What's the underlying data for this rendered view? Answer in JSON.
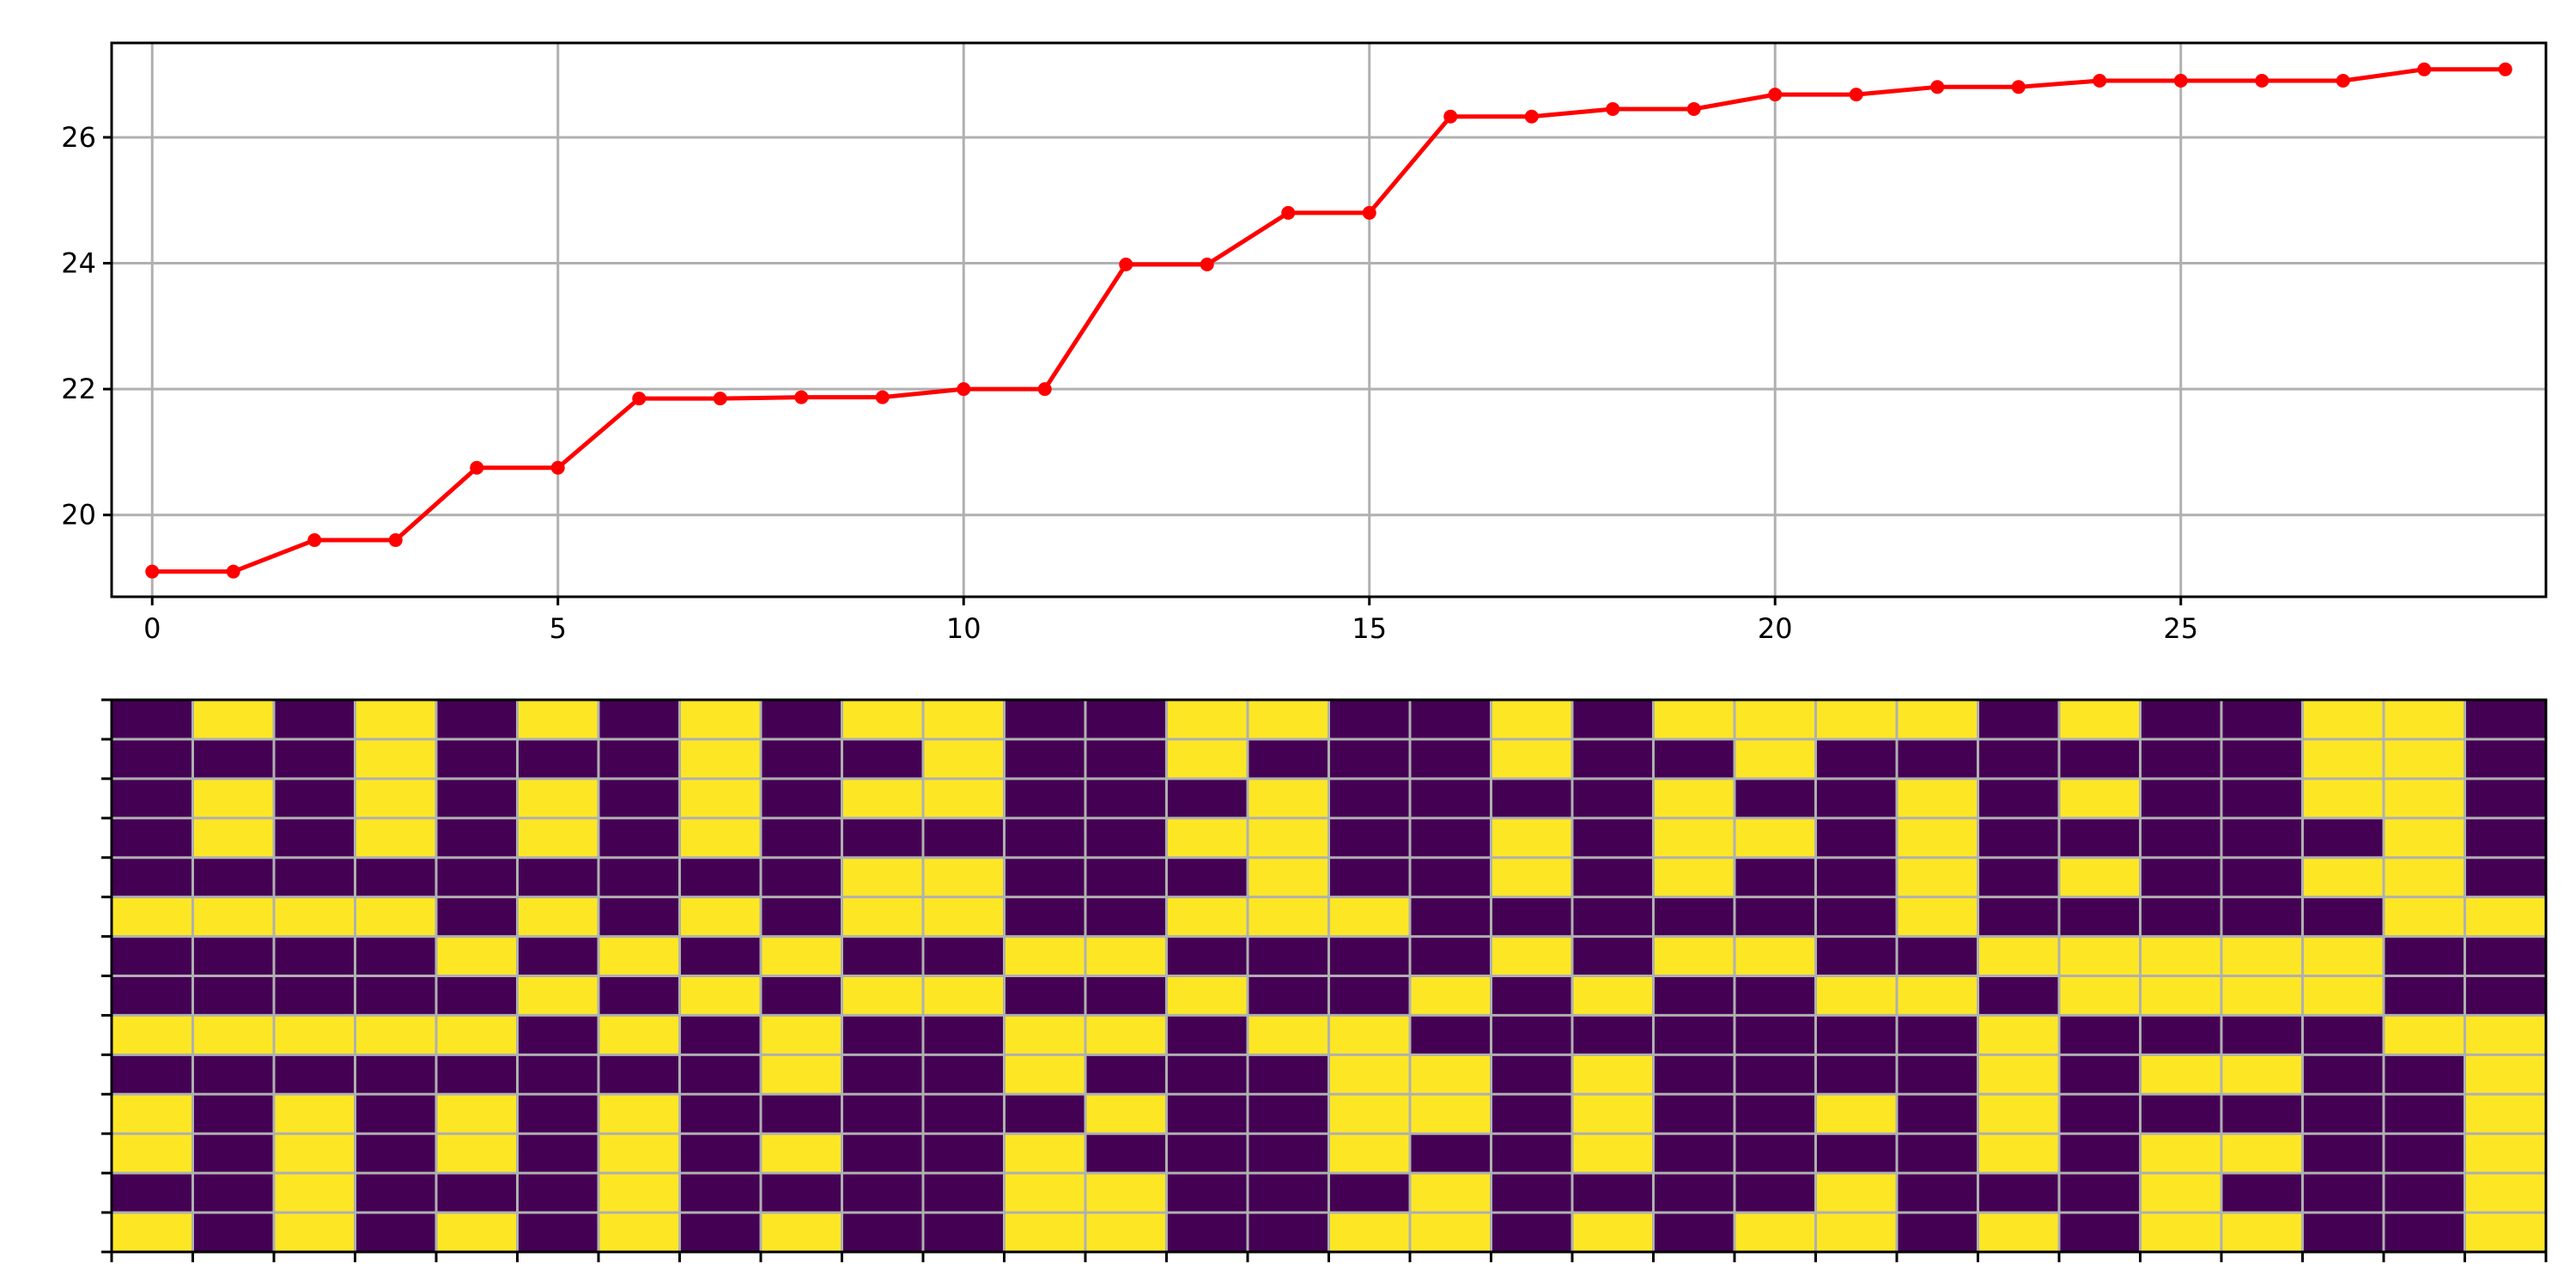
{
  "colors": {
    "line": "#ff0000",
    "heatmap_zero": "#440154",
    "heatmap_one": "#fde725",
    "grid": "#b0b0b0"
  },
  "chart_data": [
    {
      "type": "line",
      "title": "",
      "xlabel": "",
      "ylabel": "",
      "grid": true,
      "xlim": [
        -0.5,
        29.5
      ],
      "ylim": [
        18.7,
        27.5
      ],
      "xticks": [
        0,
        5,
        10,
        15,
        20,
        25
      ],
      "yticks": [
        20,
        22,
        24,
        26
      ],
      "marker": "circle",
      "series": [
        {
          "x": [
            0,
            1,
            2,
            3,
            4,
            5,
            6,
            7,
            8,
            9,
            10,
            11,
            12,
            13,
            14,
            15,
            16,
            17,
            18,
            19,
            20,
            21,
            22,
            23,
            24,
            25,
            26,
            27,
            28,
            29
          ],
          "values": [
            19.1,
            19.1,
            19.6,
            19.6,
            20.75,
            20.75,
            21.85,
            21.85,
            21.87,
            21.87,
            22.0,
            22.0,
            23.98,
            23.98,
            24.8,
            24.8,
            26.33,
            26.33,
            26.45,
            26.45,
            26.68,
            26.68,
            26.8,
            26.8,
            26.9,
            26.9,
            26.9,
            26.9,
            27.08,
            27.08
          ]
        }
      ]
    },
    {
      "type": "heatmap",
      "title": "",
      "grid": true,
      "colormap": "viridis",
      "columns": 30,
      "rows": 14,
      "matrix": [
        [
          0,
          1,
          0,
          1,
          0,
          1,
          0,
          1,
          0,
          1,
          1,
          0,
          0,
          1,
          1,
          0,
          0,
          1,
          0,
          1,
          1,
          1,
          1,
          0,
          1,
          0,
          0,
          1,
          1,
          0
        ],
        [
          0,
          0,
          0,
          1,
          0,
          0,
          0,
          1,
          0,
          0,
          1,
          0,
          0,
          1,
          0,
          0,
          0,
          1,
          0,
          0,
          1,
          0,
          0,
          0,
          0,
          0,
          0,
          1,
          1,
          0
        ],
        [
          0,
          1,
          0,
          1,
          0,
          1,
          0,
          1,
          0,
          1,
          1,
          0,
          0,
          0,
          1,
          0,
          0,
          0,
          0,
          1,
          0,
          0,
          1,
          0,
          1,
          0,
          0,
          1,
          1,
          0
        ],
        [
          0,
          1,
          0,
          1,
          0,
          1,
          0,
          1,
          0,
          0,
          0,
          0,
          0,
          1,
          1,
          0,
          0,
          1,
          0,
          1,
          1,
          0,
          1,
          0,
          0,
          0,
          0,
          0,
          1,
          0
        ],
        [
          0,
          0,
          0,
          0,
          0,
          0,
          0,
          0,
          0,
          1,
          1,
          0,
          0,
          0,
          1,
          0,
          0,
          1,
          0,
          1,
          0,
          0,
          1,
          0,
          1,
          0,
          0,
          1,
          1,
          0
        ],
        [
          1,
          1,
          1,
          1,
          0,
          1,
          0,
          1,
          0,
          1,
          1,
          0,
          0,
          1,
          1,
          1,
          0,
          0,
          0,
          0,
          0,
          0,
          1,
          0,
          0,
          0,
          0,
          0,
          1,
          1
        ],
        [
          0,
          0,
          0,
          0,
          1,
          0,
          1,
          0,
          1,
          0,
          0,
          1,
          1,
          0,
          0,
          0,
          0,
          1,
          0,
          1,
          1,
          0,
          0,
          1,
          1,
          1,
          1,
          1,
          0,
          0
        ],
        [
          0,
          0,
          0,
          0,
          0,
          1,
          0,
          1,
          0,
          1,
          1,
          0,
          0,
          1,
          0,
          0,
          1,
          0,
          1,
          0,
          0,
          1,
          1,
          0,
          1,
          1,
          1,
          1,
          0,
          0
        ],
        [
          1,
          1,
          1,
          1,
          1,
          0,
          1,
          0,
          1,
          0,
          0,
          1,
          1,
          0,
          1,
          1,
          0,
          0,
          0,
          0,
          0,
          0,
          0,
          1,
          0,
          0,
          0,
          0,
          1,
          1
        ],
        [
          0,
          0,
          0,
          0,
          0,
          0,
          0,
          0,
          1,
          0,
          0,
          1,
          0,
          0,
          0,
          1,
          1,
          0,
          1,
          0,
          0,
          0,
          0,
          1,
          0,
          1,
          1,
          0,
          0,
          1
        ],
        [
          1,
          0,
          1,
          0,
          1,
          0,
          1,
          0,
          0,
          0,
          0,
          0,
          1,
          0,
          0,
          1,
          1,
          0,
          1,
          0,
          0,
          1,
          0,
          1,
          0,
          0,
          0,
          0,
          0,
          1
        ],
        [
          1,
          0,
          1,
          0,
          1,
          0,
          1,
          0,
          1,
          0,
          0,
          1,
          0,
          0,
          0,
          1,
          0,
          0,
          1,
          0,
          0,
          0,
          0,
          1,
          0,
          1,
          1,
          0,
          0,
          1
        ],
        [
          0,
          0,
          1,
          0,
          0,
          0,
          1,
          0,
          0,
          0,
          0,
          1,
          1,
          0,
          0,
          0,
          1,
          0,
          0,
          0,
          0,
          1,
          0,
          0,
          0,
          1,
          0,
          0,
          0,
          1
        ],
        [
          1,
          0,
          1,
          0,
          1,
          0,
          1,
          0,
          1,
          0,
          0,
          1,
          1,
          0,
          0,
          1,
          1,
          0,
          1,
          0,
          1,
          1,
          0,
          1,
          0,
          1,
          1,
          0,
          0,
          1
        ]
      ]
    }
  ]
}
